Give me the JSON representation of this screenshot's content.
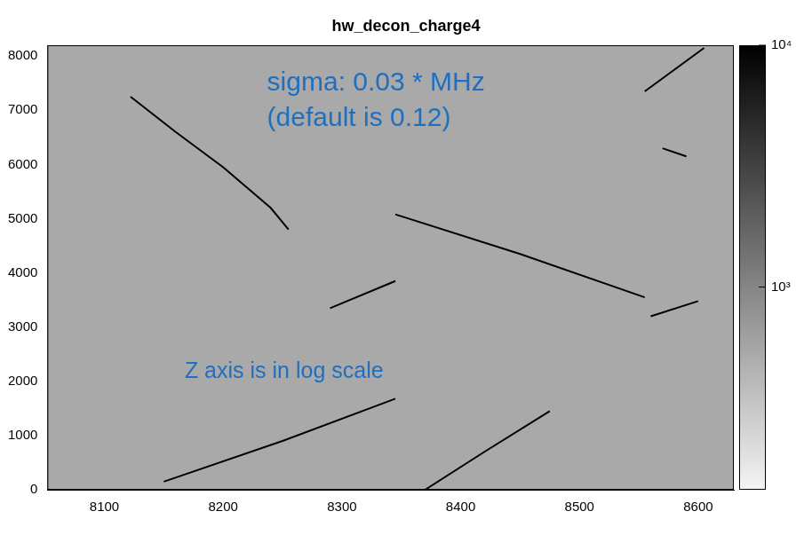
{
  "chart_data": {
    "type": "scatter",
    "title": "hw_decon_charge4",
    "annotations": [
      "sigma: 0.03 * MHz",
      "(default is 0.12)",
      "Z axis is in log scale"
    ],
    "xlim": [
      8052,
      8630
    ],
    "xticks": [
      8100,
      8200,
      8300,
      8400,
      8500,
      8600
    ],
    "ylim": [
      0,
      8200
    ],
    "yticks": [
      0,
      1000,
      2000,
      3000,
      4000,
      5000,
      6000,
      7000,
      8000
    ],
    "grid": false,
    "color": "#000000",
    "line_style": "solid",
    "marker": "none",
    "series": [
      {
        "x": [
          8122,
          8160,
          8200,
          8240,
          8255
        ],
        "values": [
          7250,
          6600,
          5950,
          5200,
          4800
        ]
      },
      {
        "x": [
          8290,
          8345
        ],
        "values": [
          3350,
          3850
        ]
      },
      {
        "x": [
          8345,
          8450,
          8555
        ],
        "values": [
          5080,
          4350,
          3550
        ]
      },
      {
        "x": [
          8560,
          8600
        ],
        "values": [
          3200,
          3480
        ]
      },
      {
        "x": [
          8150,
          8250,
          8345
        ],
        "values": [
          150,
          900,
          1680
        ]
      },
      {
        "x": [
          8370,
          8420,
          8475
        ],
        "values": [
          0,
          700,
          1450
        ]
      },
      {
        "x": [
          8555,
          8605
        ],
        "values": [
          7350,
          8150
        ]
      },
      {
        "x": [
          8570,
          8590
        ],
        "values": [
          6300,
          6150
        ]
      }
    ],
    "colorbar": {
      "log": true,
      "range": [
        145,
        10000
      ],
      "ticks": [
        {
          "value": 1000,
          "label": "10³"
        },
        {
          "value": 10000,
          "label": "10⁴"
        }
      ]
    }
  }
}
